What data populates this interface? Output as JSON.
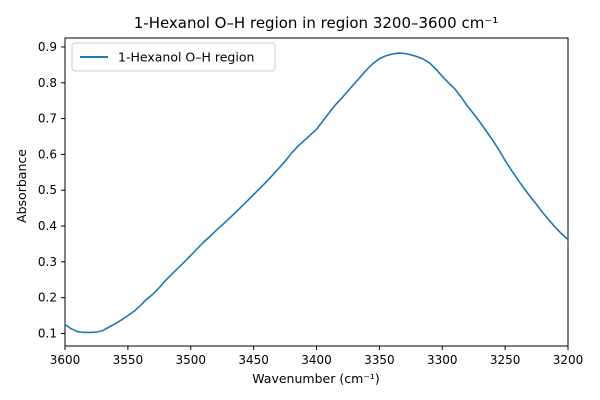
{
  "chart_data": {
    "type": "line",
    "title": "1-Hexanol O–H region in region 3200–3600 cm⁻¹",
    "xlabel": "Wavenumber (cm⁻¹)",
    "ylabel": "Absorbance",
    "xlim": [
      3600,
      3200
    ],
    "ylim": [
      0.065,
      0.925
    ],
    "x_reversed": true,
    "grid": false,
    "legend_position": "top-left",
    "xticks": [
      3600,
      3550,
      3500,
      3450,
      3400,
      3350,
      3300,
      3250,
      3200
    ],
    "yticks": [
      0.1,
      0.2,
      0.3,
      0.4,
      0.5,
      0.6,
      0.7,
      0.8,
      0.9
    ],
    "series": [
      {
        "name": "1-Hexanol O–H region",
        "color": "#1f77b4",
        "x": [
          3600,
          3595,
          3590,
          3585,
          3580,
          3575,
          3570,
          3565,
          3560,
          3555,
          3550,
          3545,
          3540,
          3535,
          3530,
          3525,
          3520,
          3515,
          3510,
          3505,
          3500,
          3495,
          3490,
          3485,
          3480,
          3475,
          3470,
          3465,
          3460,
          3455,
          3450,
          3445,
          3440,
          3435,
          3430,
          3425,
          3420,
          3415,
          3410,
          3405,
          3400,
          3395,
          3390,
          3385,
          3380,
          3375,
          3370,
          3365,
          3360,
          3355,
          3350,
          3345,
          3340,
          3335,
          3330,
          3325,
          3320,
          3315,
          3310,
          3305,
          3300,
          3295,
          3290,
          3285,
          3280,
          3275,
          3270,
          3265,
          3260,
          3255,
          3250,
          3245,
          3240,
          3235,
          3230,
          3225,
          3220,
          3215,
          3210,
          3205,
          3200
        ],
        "y": [
          0.125,
          0.113,
          0.105,
          0.103,
          0.103,
          0.104,
          0.108,
          0.118,
          0.127,
          0.138,
          0.15,
          0.162,
          0.178,
          0.196,
          0.21,
          0.228,
          0.248,
          0.266,
          0.283,
          0.3,
          0.318,
          0.336,
          0.354,
          0.37,
          0.387,
          0.403,
          0.419,
          0.436,
          0.453,
          0.47,
          0.488,
          0.505,
          0.523,
          0.542,
          0.561,
          0.581,
          0.603,
          0.622,
          0.638,
          0.654,
          0.67,
          0.693,
          0.716,
          0.738,
          0.757,
          0.777,
          0.797,
          0.817,
          0.837,
          0.854,
          0.867,
          0.875,
          0.88,
          0.883,
          0.882,
          0.878,
          0.873,
          0.866,
          0.855,
          0.838,
          0.818,
          0.8,
          0.783,
          0.76,
          0.735,
          0.713,
          0.69,
          0.665,
          0.64,
          0.613,
          0.583,
          0.556,
          0.53,
          0.505,
          0.482,
          0.46,
          0.437,
          0.416,
          0.396,
          0.378,
          0.362
        ]
      }
    ]
  }
}
